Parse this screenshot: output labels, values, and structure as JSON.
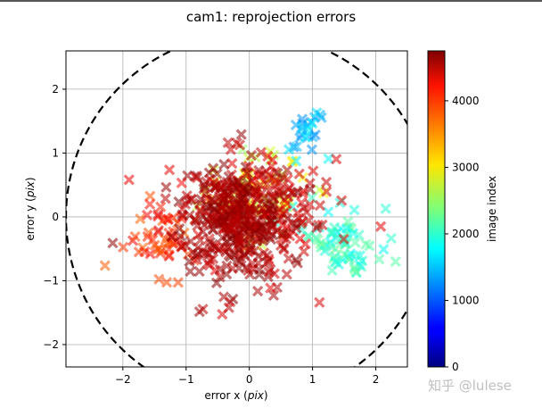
{
  "chart_data": {
    "type": "scatter",
    "title": "cam1: reprojection errors",
    "xlabel": {
      "text": "error x (",
      "italic": "pix",
      "tail": ")"
    },
    "ylabel": {
      "text": "error y (",
      "italic": "pix",
      "tail": ")"
    },
    "xlim": [
      -2.9,
      2.5
    ],
    "ylim": [
      -2.35,
      2.6
    ],
    "xticks": [
      -2,
      -1,
      0,
      1,
      2
    ],
    "yticks": [
      -2,
      -1,
      0,
      1,
      2
    ],
    "grid": true,
    "marker": "x",
    "colormap": "jet",
    "colorbar": {
      "label": "image index",
      "range": [
        0,
        4750
      ],
      "ticks": [
        0,
        1000,
        2000,
        3000,
        4000
      ]
    },
    "boundary_circle": {
      "center": [
        0,
        0
      ],
      "radius": 2.9,
      "style": "dashed",
      "color": "#000000"
    },
    "clusters": [
      {
        "center_x": 0.05,
        "center_y": 0.35,
        "spread_x": 0.85,
        "spread_y": 0.7,
        "index_range": [
          2400,
          3300
        ],
        "count": 70
      },
      {
        "center_x": 0.9,
        "center_y": 1.3,
        "spread_x": 0.35,
        "spread_y": 0.35,
        "index_range": [
          1200,
          1800
        ],
        "count": 25
      },
      {
        "center_x": 1.45,
        "center_y": -0.4,
        "spread_x": 0.6,
        "spread_y": 0.55,
        "index_range": [
          1800,
          2300
        ],
        "count": 70
      },
      {
        "center_x": -1.35,
        "center_y": -0.3,
        "spread_x": 0.55,
        "spread_y": 0.6,
        "index_range": [
          3700,
          4200
        ],
        "count": 50
      },
      {
        "center_x": -0.05,
        "center_y": 0.05,
        "spread_x": 1.3,
        "spread_y": 1.05,
        "index_range": [
          4200,
          4500
        ],
        "count": 170
      },
      {
        "center_x": -0.25,
        "center_y": -0.05,
        "spread_x": 0.95,
        "spread_y": 0.85,
        "index_range": [
          4450,
          4750
        ],
        "count": 320
      }
    ]
  },
  "watermark": "知乎 @lulese"
}
